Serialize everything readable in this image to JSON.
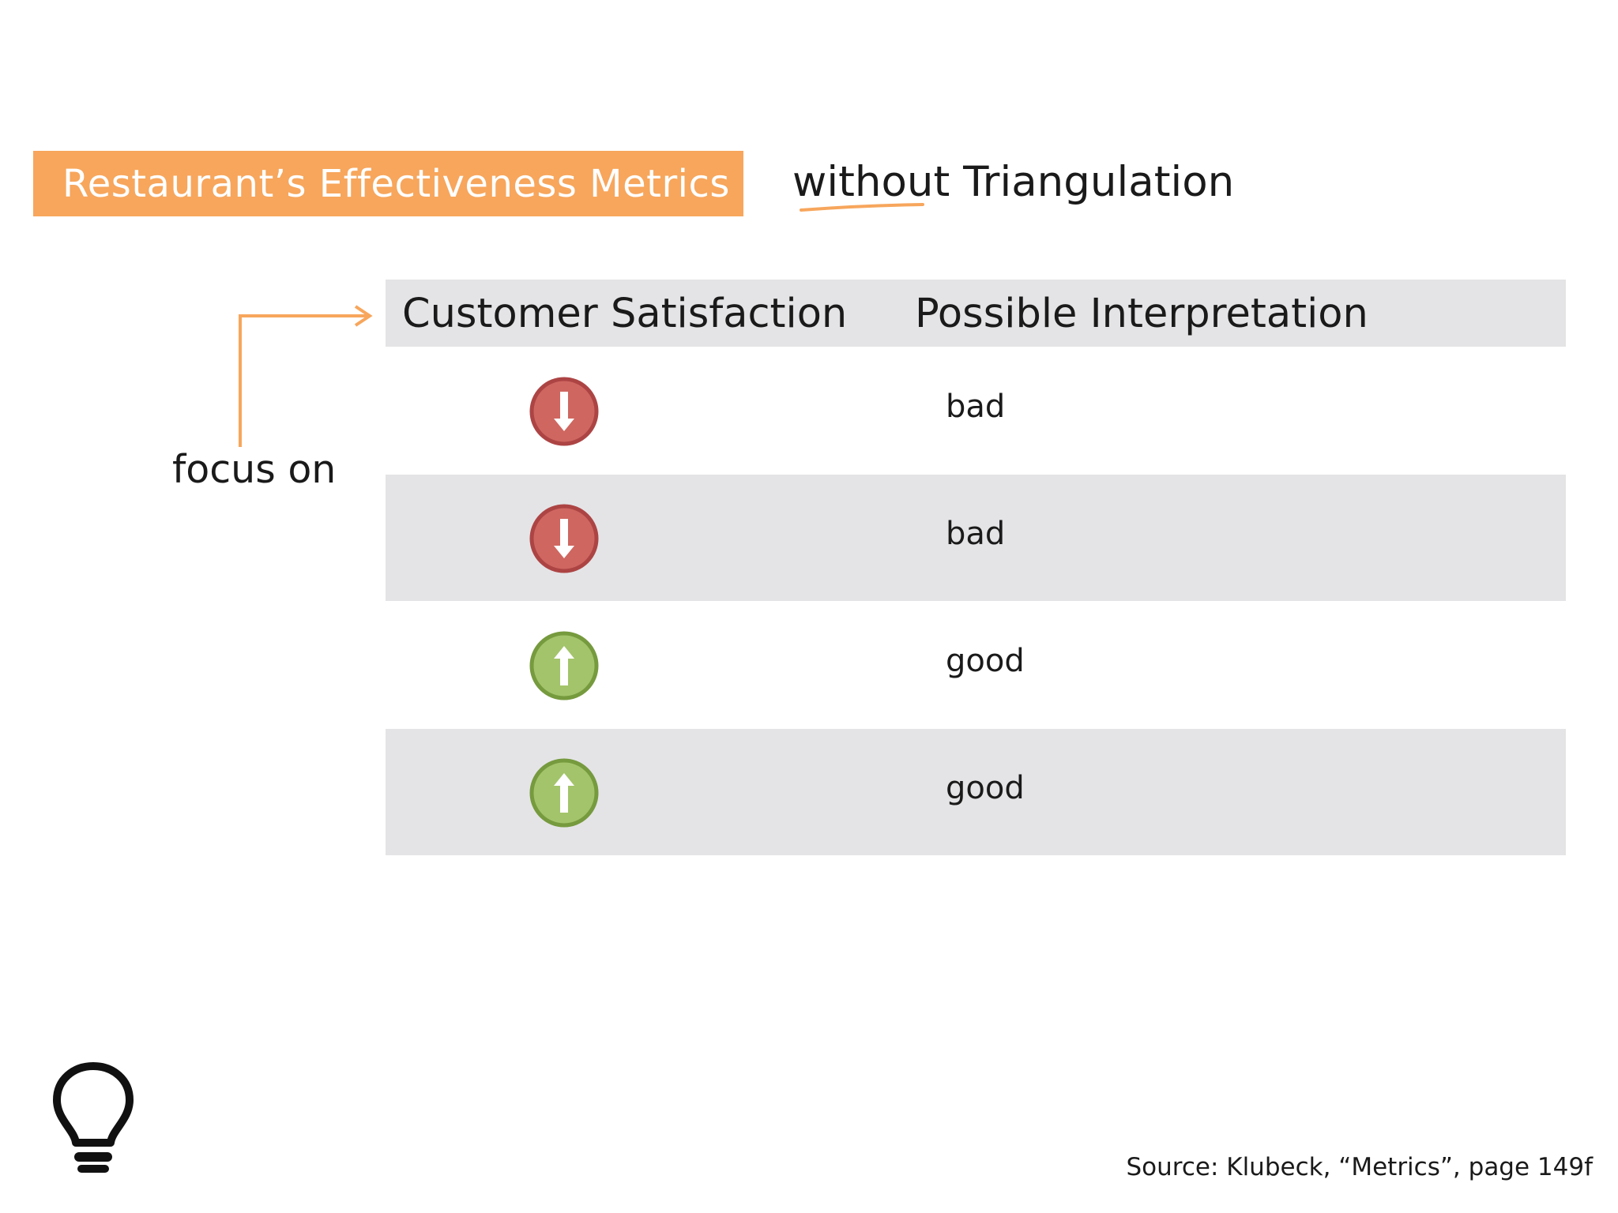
{
  "title": "Restaurant’s Effectiveness Metrics",
  "subtitle": "without Triangulation",
  "annotation": "focus on",
  "table": {
    "headers": [
      "Customer Satisfaction",
      "Possible Interpretation"
    ],
    "rows": [
      {
        "trend": "down",
        "trend_icon": "down-arrow-circle-icon",
        "interpretation": "bad"
      },
      {
        "trend": "down",
        "trend_icon": "down-arrow-circle-icon",
        "interpretation": "bad"
      },
      {
        "trend": "up",
        "trend_icon": "up-arrow-circle-icon",
        "interpretation": "good"
      },
      {
        "trend": "up",
        "trend_icon": "up-arrow-circle-icon",
        "interpretation": "good"
      }
    ]
  },
  "source": "Source: Klubeck, “Metrics”, page 149f",
  "icons": {
    "logo": "lightbulb-icon"
  },
  "colors": {
    "accent": "#f7a65c",
    "down": "#cf6660",
    "down_border": "#ad4444",
    "up": "#a3c46a",
    "up_border": "#769a3e",
    "row_shade": "#e4e4e6"
  }
}
